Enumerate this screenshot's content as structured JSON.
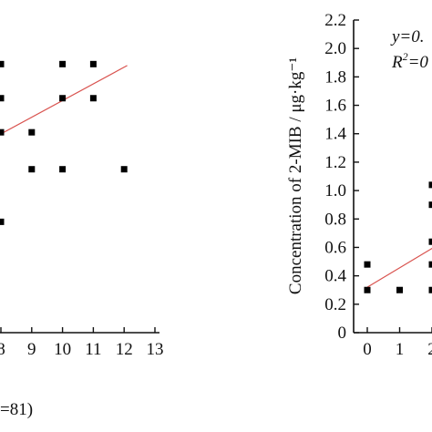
{
  "colors": {
    "marker": "#000000",
    "fit_line": "#d9534f",
    "axis": "#111111"
  },
  "chart_data": [
    {
      "type": "scatter",
      "panel": "left (cropped)",
      "xlabel": "",
      "ylabel": "",
      "xlim": [
        7.5,
        13
      ],
      "x_ticks": [
        "8",
        "9",
        "10",
        "11",
        "12",
        "13"
      ],
      "ylim": [
        0,
        2.2
      ],
      "footer_text": "=81)",
      "points": [
        {
          "x": 8.0,
          "y": 1.89
        },
        {
          "x": 8.0,
          "y": 1.65
        },
        {
          "x": 8.0,
          "y": 1.41
        },
        {
          "x": 8.0,
          "y": 0.78
        },
        {
          "x": 9.0,
          "y": 1.41
        },
        {
          "x": 9.0,
          "y": 1.15
        },
        {
          "x": 10.0,
          "y": 1.89
        },
        {
          "x": 10.0,
          "y": 1.65
        },
        {
          "x": 10.0,
          "y": 1.15
        },
        {
          "x": 11.0,
          "y": 1.89
        },
        {
          "x": 11.0,
          "y": 1.65
        },
        {
          "x": 12.0,
          "y": 1.15
        }
      ],
      "fit_line": {
        "x": [
          7.5,
          12.1
        ],
        "y": [
          1.34,
          1.88
        ]
      }
    },
    {
      "type": "scatter",
      "panel": "right (cropped)",
      "ylabel": "Concentration of 2-MIB / μg·kg⁻¹",
      "xlabel": "",
      "xlim": [
        -0.4,
        2.2
      ],
      "x_ticks": [
        "0",
        "1",
        "2"
      ],
      "ylim": [
        0,
        2.2
      ],
      "y_ticks": [
        "0",
        "0.2",
        "0.4",
        "0.6",
        "0.8",
        "1.0",
        "1.2",
        "1.4",
        "1.6",
        "1.8",
        "2.0",
        "2.2"
      ],
      "annotation": {
        "line1": "y=0.",
        "line2_prefix": "R",
        "line2_sup": "2",
        "line2_suffix": "=0"
      },
      "points": [
        {
          "x": 0.0,
          "y": 0.48
        },
        {
          "x": 0.0,
          "y": 0.3
        },
        {
          "x": 1.0,
          "y": 0.3
        },
        {
          "x": 2.0,
          "y": 1.04
        },
        {
          "x": 2.0,
          "y": 0.9
        },
        {
          "x": 2.0,
          "y": 0.64
        },
        {
          "x": 2.0,
          "y": 0.48
        },
        {
          "x": 2.0,
          "y": 0.3
        }
      ],
      "fit_line": {
        "x": [
          0.0,
          2.2
        ],
        "y": [
          0.32,
          0.62
        ]
      }
    }
  ]
}
